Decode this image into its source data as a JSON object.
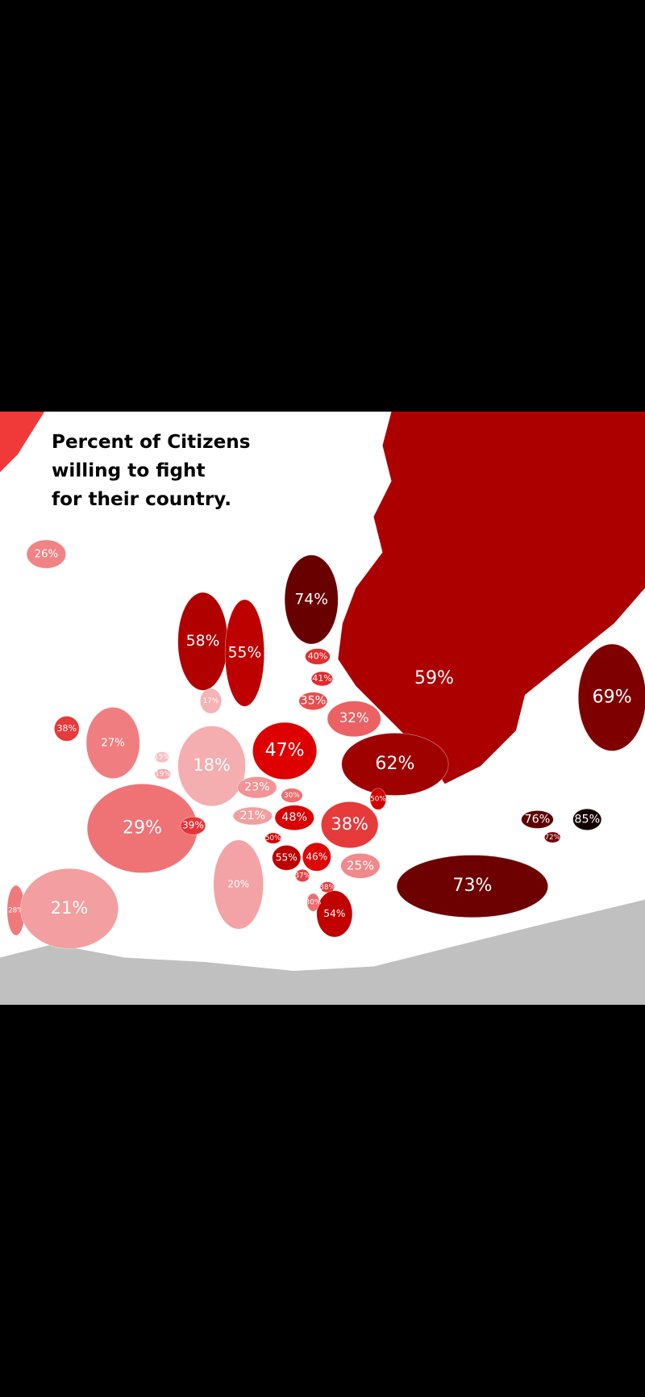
{
  "title": [
    "Percent of Citizens",
    "willing to fight",
    "for their country."
  ],
  "regions": [
    {
      "label": "26%",
      "value": 26
    },
    {
      "label": "58%",
      "value": 58
    },
    {
      "label": "55%",
      "value": 55
    },
    {
      "label": "74%",
      "value": 74
    },
    {
      "label": "40%",
      "value": 40
    },
    {
      "label": "41%",
      "value": 41
    },
    {
      "label": "35%",
      "value": 35
    },
    {
      "label": "32%",
      "value": 32
    },
    {
      "label": "59%",
      "value": 59
    },
    {
      "label": "69%",
      "value": 69
    },
    {
      "label": "38%",
      "value": 38
    },
    {
      "label": "27%",
      "value": 27
    },
    {
      "label": "15%",
      "value": 15
    },
    {
      "label": "19%",
      "value": 19
    },
    {
      "label": "18%",
      "value": 18
    },
    {
      "label": "47%",
      "value": 47
    },
    {
      "label": "62%",
      "value": 62
    },
    {
      "label": "23%",
      "value": 23
    },
    {
      "label": "30%",
      "value": 30
    },
    {
      "label": "29%",
      "value": 29
    },
    {
      "label": "39%",
      "value": 39
    },
    {
      "label": "21%",
      "value": 21
    },
    {
      "label": "48%",
      "value": 48
    },
    {
      "label": "38%",
      "value": 38
    },
    {
      "label": "50%",
      "value": 50
    },
    {
      "label": "55%",
      "value": 55
    },
    {
      "label": "46%",
      "value": 46
    },
    {
      "label": "25%",
      "value": 25
    },
    {
      "label": "20%",
      "value": 20
    },
    {
      "label": "38%",
      "value": 38
    },
    {
      "label": "54%",
      "value": 54
    },
    {
      "label": "73%",
      "value": 73
    },
    {
      "label": "76%",
      "value": 76
    },
    {
      "label": "85%",
      "value": 85
    },
    {
      "label": "72%",
      "value": 72
    },
    {
      "label": "28%",
      "value": 28
    },
    {
      "label": "21%",
      "value": 21
    },
    {
      "label": "17%",
      "value": 17
    },
    {
      "label": "50%",
      "value": 50
    },
    {
      "label": "30%",
      "value": 30
    },
    {
      "label": "37%",
      "value": 37
    }
  ]
}
